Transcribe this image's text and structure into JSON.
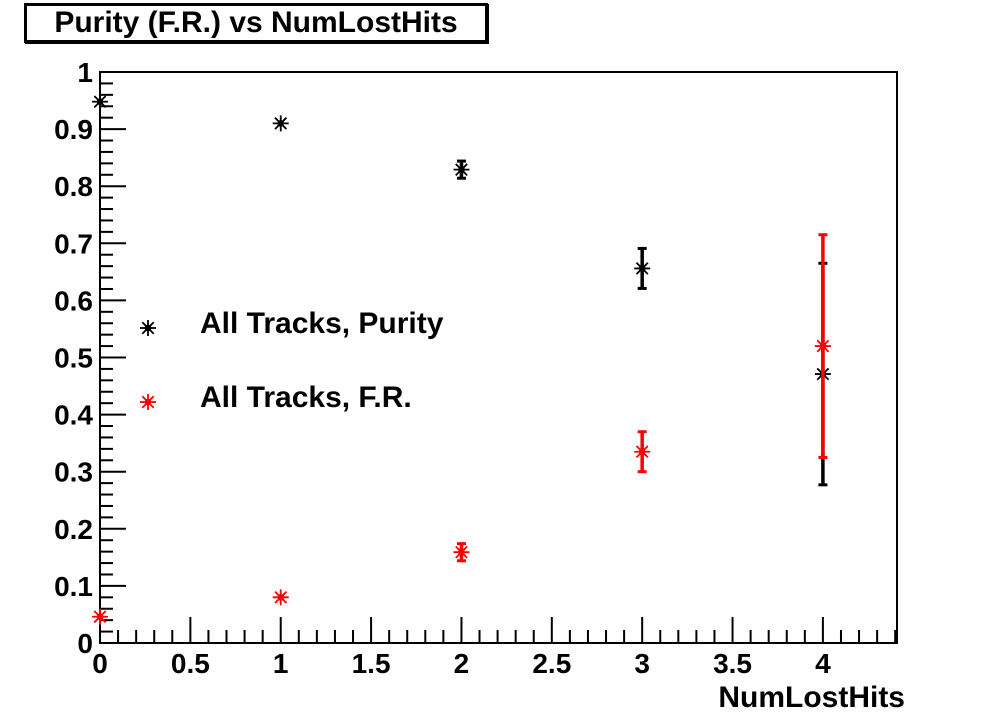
{
  "title": "Purity (F.R.) vs NumLostHits",
  "chart_data": {
    "type": "scatter",
    "title": "Purity (F.R.) vs NumLostHits",
    "xlabel": "NumLostHits",
    "ylabel": "",
    "xlim": [
      0,
      4.41
    ],
    "ylim": [
      0,
      1
    ],
    "grid": false,
    "legend_position": "inside-left",
    "x_tick_labels": [
      "0",
      "0.5",
      "1",
      "1.5",
      "2",
      "2.5",
      "3",
      "3.5",
      "4"
    ],
    "x_major_ticks": [
      0,
      0.5,
      1,
      1.5,
      2,
      2.5,
      3,
      3.5,
      4
    ],
    "x_minor_step": 0.1,
    "y_tick_labels": [
      "0",
      "0.1",
      "0.2",
      "0.3",
      "0.4",
      "0.5",
      "0.6",
      "0.7",
      "0.8",
      "0.9",
      "1"
    ],
    "y_major_ticks": [
      0,
      0.1,
      0.2,
      0.3,
      0.4,
      0.5,
      0.6,
      0.7,
      0.8,
      0.9,
      1
    ],
    "y_minor_step": 0.02,
    "series": [
      {
        "name": "All Tracks, Purity",
        "color": "#000000",
        "marker": "asterisk",
        "points": [
          {
            "x": 0,
            "y": 0.948,
            "ey": 0
          },
          {
            "x": 1,
            "y": 0.91,
            "ey": 0
          },
          {
            "x": 2,
            "y": 0.829,
            "ey": 0.015
          },
          {
            "x": 3,
            "y": 0.656,
            "ey": 0.035
          },
          {
            "x": 4,
            "y": 0.471,
            "ey": 0.194
          }
        ]
      },
      {
        "name": "All Tracks, F.R.",
        "color": "#ff0000",
        "marker": "asterisk",
        "points": [
          {
            "x": 0,
            "y": 0.046,
            "ey": 0
          },
          {
            "x": 1,
            "y": 0.08,
            "ey": 0
          },
          {
            "x": 2,
            "y": 0.159,
            "ey": 0.015
          },
          {
            "x": 3,
            "y": 0.335,
            "ey": 0.035
          },
          {
            "x": 4,
            "y": 0.52,
            "ey": 0.195
          }
        ]
      }
    ]
  }
}
